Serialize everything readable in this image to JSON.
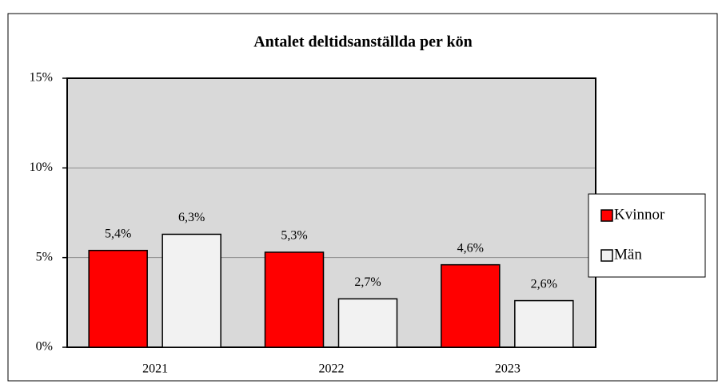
{
  "chart_data": {
    "type": "bar",
    "title": "Antalet deltidsanställda per kön",
    "categories": [
      "2021",
      "2022",
      "2023"
    ],
    "series": [
      {
        "name": "Kvinnor",
        "color": "#ff0000",
        "values": [
          5.4,
          5.3,
          4.6
        ],
        "value_labels": [
          "5,4%",
          "5,3%",
          "4,6%"
        ]
      },
      {
        "name": "Män",
        "color": "#f2f2f2",
        "values": [
          6.3,
          2.7,
          2.6
        ],
        "value_labels": [
          "6,3%",
          "2,7%",
          "2,6%"
        ]
      }
    ],
    "ylim": [
      0,
      15
    ],
    "yticks": [
      {
        "value": 0,
        "label": "0%"
      },
      {
        "value": 5,
        "label": "5%"
      },
      {
        "value": 10,
        "label": "10%"
      },
      {
        "value": 15,
        "label": "15%"
      }
    ],
    "grid": true,
    "legend": "right"
  }
}
